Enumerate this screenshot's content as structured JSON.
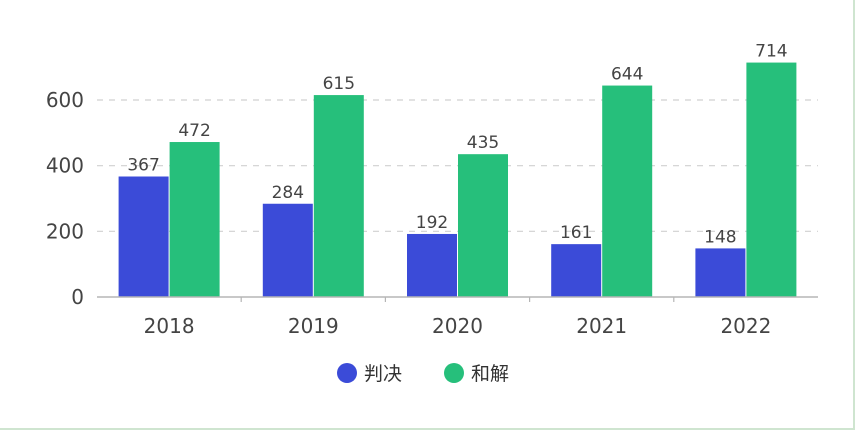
{
  "chart_data": {
    "type": "bar",
    "categories": [
      "2018",
      "2019",
      "2020",
      "2021",
      "2022"
    ],
    "series": [
      {
        "name": "判决",
        "color": "#3b4bd8",
        "values": [
          367,
          284,
          192,
          161,
          148
        ]
      },
      {
        "name": "和解",
        "color": "#26bf7b",
        "values": [
          472,
          615,
          435,
          644,
          714
        ]
      }
    ],
    "y_ticks": [
      0,
      200,
      400,
      600
    ],
    "ylim": [
      0,
      750
    ],
    "grid": true,
    "legend": "bottom-center"
  }
}
